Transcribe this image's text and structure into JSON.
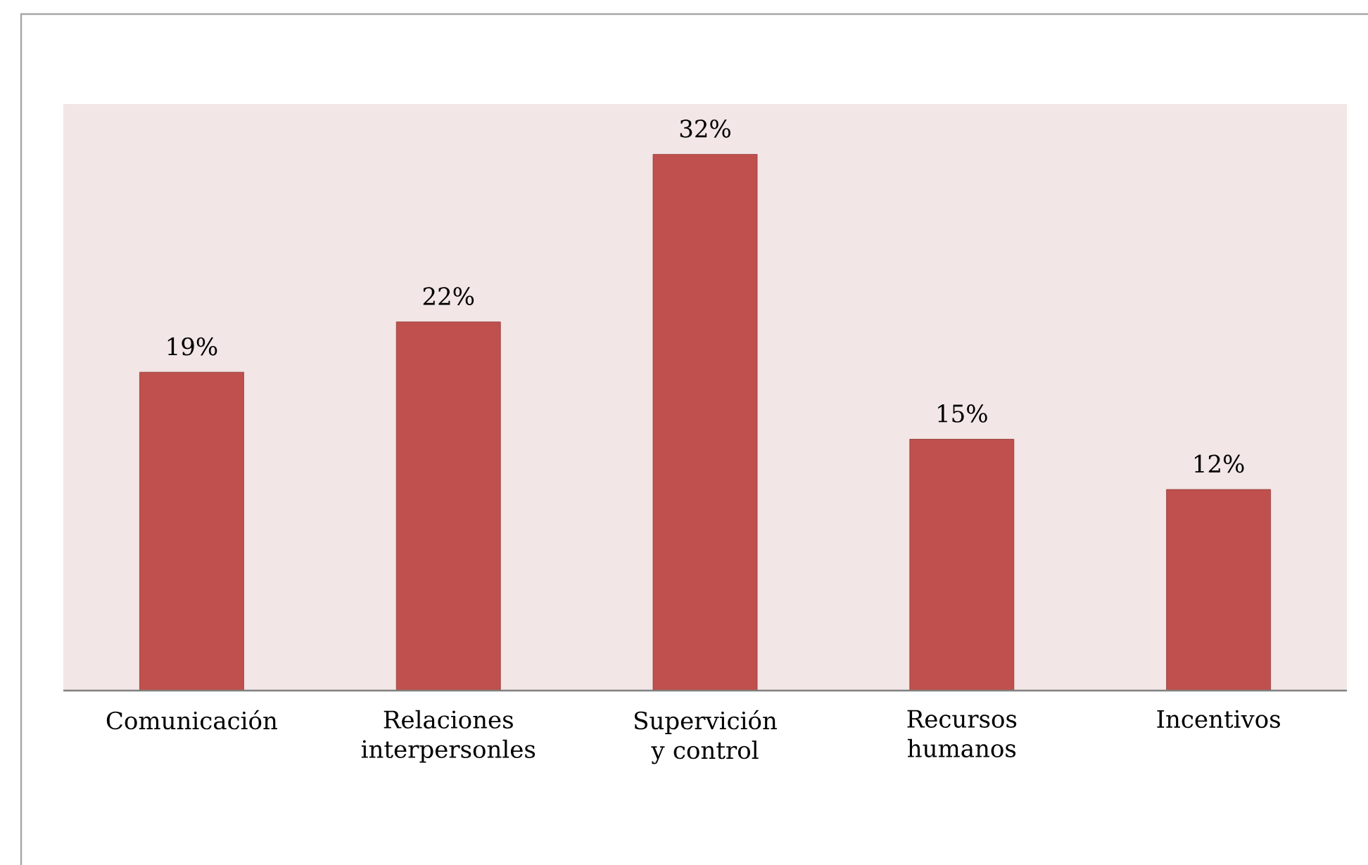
{
  "chart_data": {
    "type": "bar",
    "categories": [
      "Comunicación",
      "Relaciones interpersonles",
      "Supervición y control",
      "Recursos humanos",
      "Incentivos"
    ],
    "values": [
      19,
      22,
      32,
      15,
      12
    ],
    "value_labels": [
      "19%",
      "22%",
      "32%",
      "15%",
      "12%"
    ],
    "color": "#c0504d",
    "ylim": [
      0,
      35
    ],
    "tick_labels": "x"
  }
}
